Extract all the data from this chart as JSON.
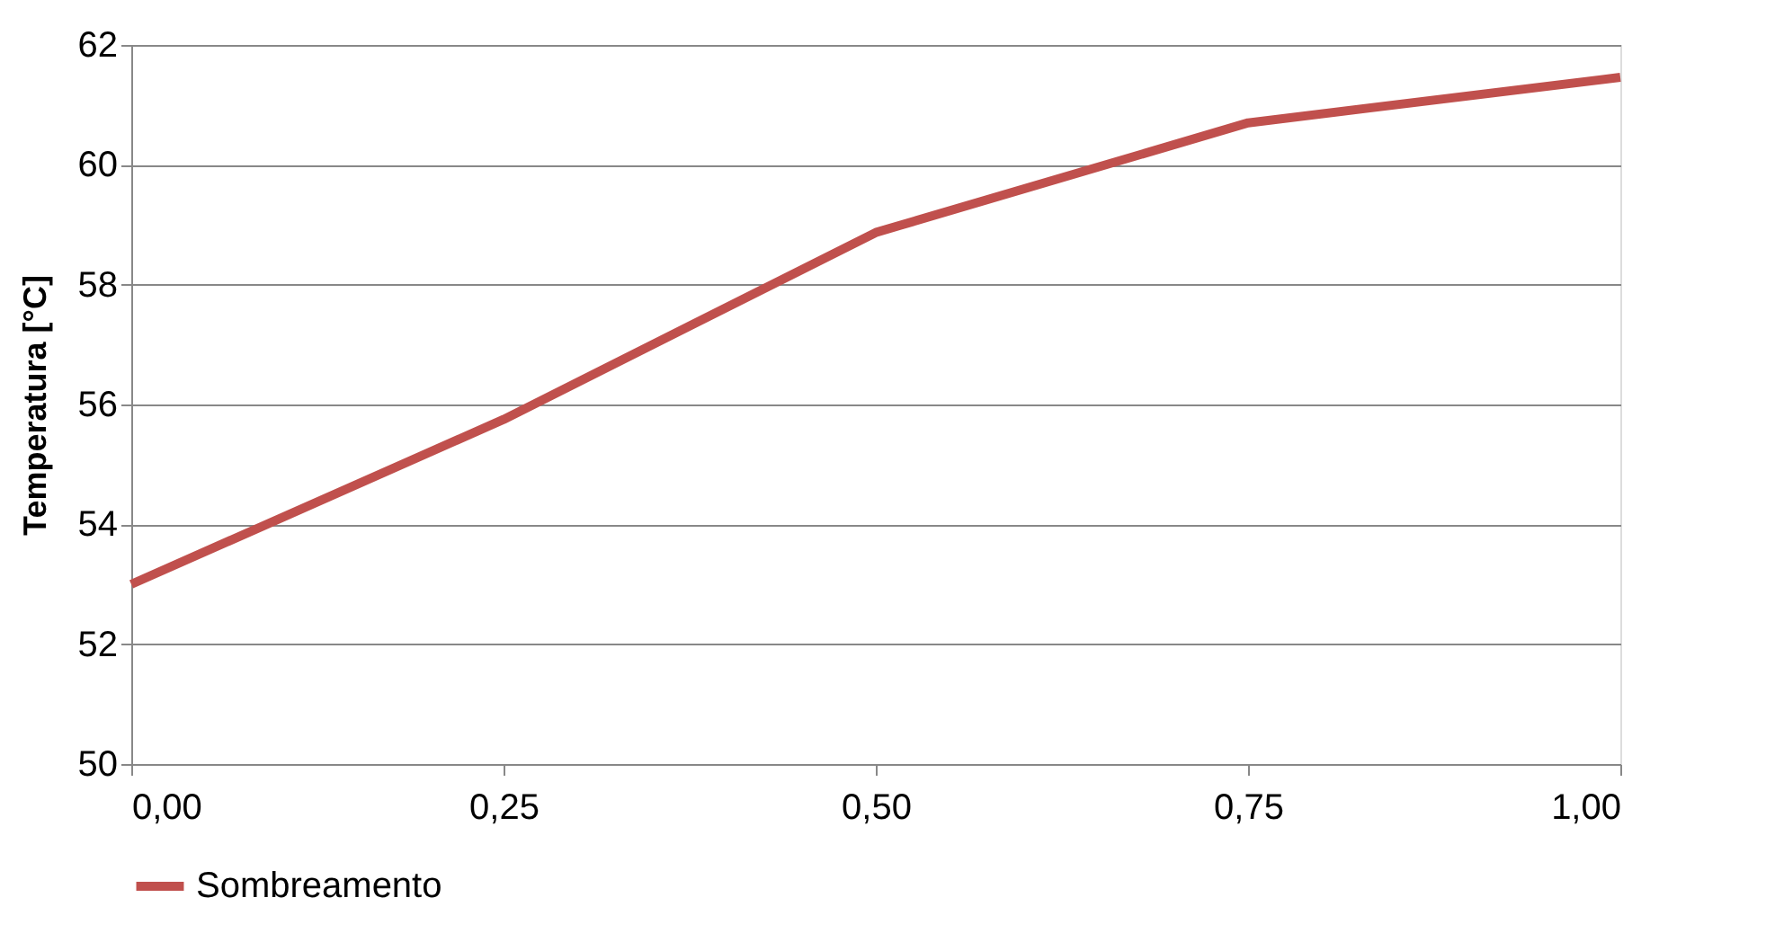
{
  "chart_data": {
    "type": "line",
    "ylabel": "Temperatura [°C]",
    "x": [
      0,
      0.25,
      0.5,
      0.75,
      1
    ],
    "series": [
      {
        "name": "Sombreamento",
        "color": "#c0504d",
        "values": [
          53.0,
          55.75,
          58.87,
          60.7,
          61.46
        ]
      }
    ],
    "xlim": [
      0,
      1
    ],
    "xticks": [
      {
        "value": 0,
        "label": "0,00"
      },
      {
        "value": 0.25,
        "label": "0,25"
      },
      {
        "value": 0.5,
        "label": "0,50"
      },
      {
        "value": 0.75,
        "label": "0,75"
      },
      {
        "value": 1,
        "label": "1,00"
      }
    ],
    "ylim": [
      50,
      62
    ],
    "yticks": [
      50,
      52,
      54,
      56,
      58,
      60,
      62
    ],
    "grid": "y",
    "legend": "bottom",
    "marker": "none",
    "line_style": "solid"
  }
}
